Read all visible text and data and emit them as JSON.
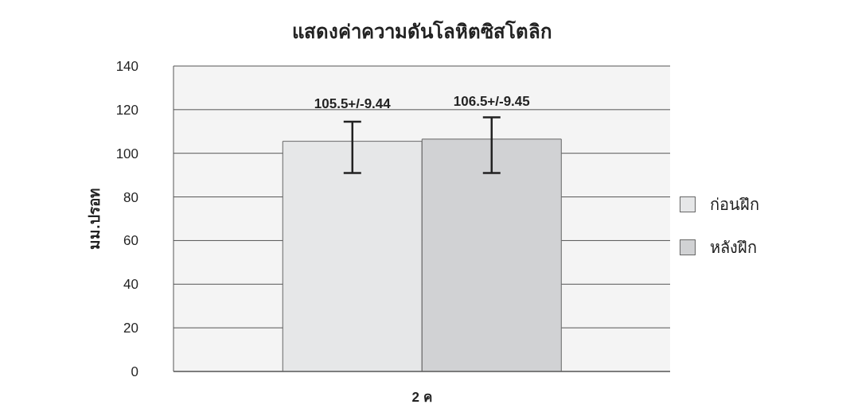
{
  "chart_data": {
    "type": "bar",
    "title": "แสดงค่าความดันโลหิตซิสโตลิก",
    "ylabel": "มม.ปรอท",
    "xlabel": "2 ค",
    "categories": [
      null
    ],
    "series": [
      {
        "name": "ก่อนฝึก",
        "color": "#e6e7e8",
        "values": [
          105.5
        ],
        "errors": [
          [
            91,
            114.5
          ]
        ],
        "value_labels": [
          "105.5+/-9.44"
        ]
      },
      {
        "name": "หลังฝึก",
        "color": "#d1d2d4",
        "values": [
          106.5
        ],
        "errors": [
          [
            91,
            116.5
          ]
        ],
        "value_labels": [
          "106.5+/-9.45"
        ]
      }
    ],
    "ylim": [
      0,
      140
    ],
    "yticks": [
      0,
      20,
      40,
      60,
      80,
      100,
      120,
      140
    ],
    "grid": "y",
    "legend": "right"
  }
}
